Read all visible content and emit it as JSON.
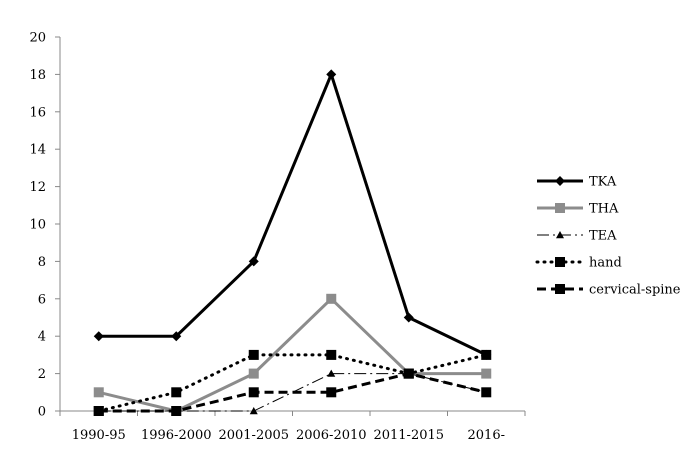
{
  "chart_data": {
    "type": "line",
    "categories": [
      "1990-95",
      "1996-2000",
      "2001-2005",
      "2006-2010",
      "2011-2015",
      "2016-"
    ],
    "ylim": [
      0,
      20
    ],
    "yticks": [
      0,
      2,
      4,
      6,
      8,
      10,
      12,
      14,
      16,
      18,
      20
    ],
    "grid": false,
    "legend_position": "right",
    "series": [
      {
        "name": "TKA",
        "values": [
          4,
          4,
          8,
          18,
          5,
          3
        ],
        "color": "#000000",
        "line_style": "solid-thick",
        "marker": "diamond"
      },
      {
        "name": "THA",
        "values": [
          1,
          0,
          2,
          6,
          2,
          2
        ],
        "color": "#8c8c8c",
        "line_style": "solid-thick",
        "marker": "square"
      },
      {
        "name": "TEA",
        "values": [
          0,
          0,
          0,
          2,
          2,
          1
        ],
        "color": "#000000",
        "line_style": "long-dash-dot-thin",
        "marker": "triangle"
      },
      {
        "name": "hand",
        "values": [
          0,
          1,
          3,
          3,
          2,
          3
        ],
        "color": "#000000",
        "line_style": "dotted-thick",
        "marker": "square"
      },
      {
        "name": "cervical-spine",
        "values": [
          0,
          0,
          1,
          1,
          2,
          1
        ],
        "color": "#000000",
        "line_style": "dashed-thick",
        "marker": "square"
      }
    ]
  }
}
